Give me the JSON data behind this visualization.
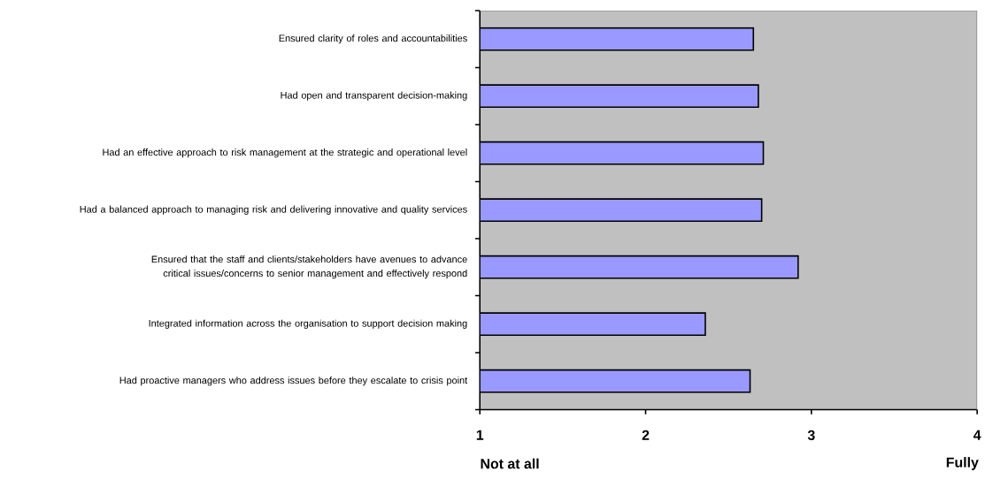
{
  "chart_data": {
    "type": "bar",
    "orientation": "horizontal",
    "categories": [
      "Ensured clarity of roles and accountabilities",
      "Had open and transparent decision-making",
      "Had an effective approach to risk management at the strategic and operational level",
      "Had a balanced approach to managing risk and delivering innovative and quality services",
      "Ensured that the staff and clients/stakeholders have avenues to advance critical issues/concerns to senior management and effectively respond",
      "Integrated information across the organisation to support decision making",
      "Had proactive managers who address issues before they escalate to crisis point"
    ],
    "values": [
      2.65,
      2.68,
      2.71,
      2.7,
      2.92,
      2.36,
      2.63
    ],
    "color": "#9999ff",
    "xlim": [
      1,
      4
    ],
    "xticks": [
      1,
      2,
      3,
      4
    ],
    "annotations": [
      "Not at all",
      "Fully"
    ]
  }
}
